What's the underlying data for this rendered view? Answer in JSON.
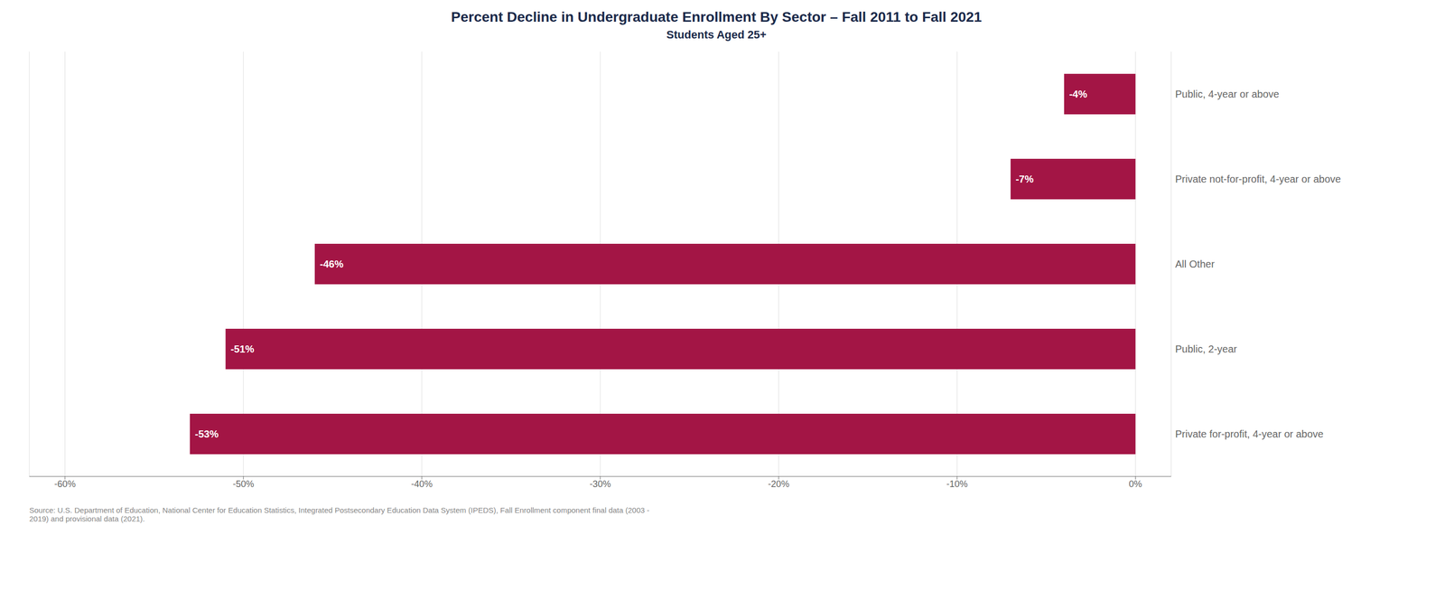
{
  "chart_data": {
    "type": "bar",
    "orientation": "horizontal",
    "title": "Percent Decline in Undergraduate Enrollment By Sector – Fall 2011 to Fall 2021",
    "subtitle": "Students Aged 25+",
    "categories": [
      "Public, 4-year or above",
      "Private not-for-profit, 4-year or above",
      "All Other",
      "Public, 2-year",
      "Private for-profit, 4-year or above"
    ],
    "values": [
      -4,
      -7,
      -46,
      -51,
      -53
    ],
    "value_labels": [
      "-4%",
      "-7%",
      "-46%",
      "-51%",
      "-53%"
    ],
    "data_labels": true,
    "color": "#A31545",
    "xlim": [
      -62,
      2
    ],
    "xticks": [
      {
        "value": -60,
        "label": "-60%"
      },
      {
        "value": -50,
        "label": "-50%"
      },
      {
        "value": -40,
        "label": "-40%"
      },
      {
        "value": -30,
        "label": "-30%"
      },
      {
        "value": -20,
        "label": "-20%"
      },
      {
        "value": -10,
        "label": "-10%"
      },
      {
        "value": 0,
        "label": "0%"
      }
    ],
    "grid": true,
    "annotations": [
      "Source: U.S. Department of Education, National Center for Education Statistics, Integrated Postsecondary Education Data System (IPEDS), Fall Enrollment component final data (2003 -\n2019) and provisional data (2021)."
    ]
  }
}
